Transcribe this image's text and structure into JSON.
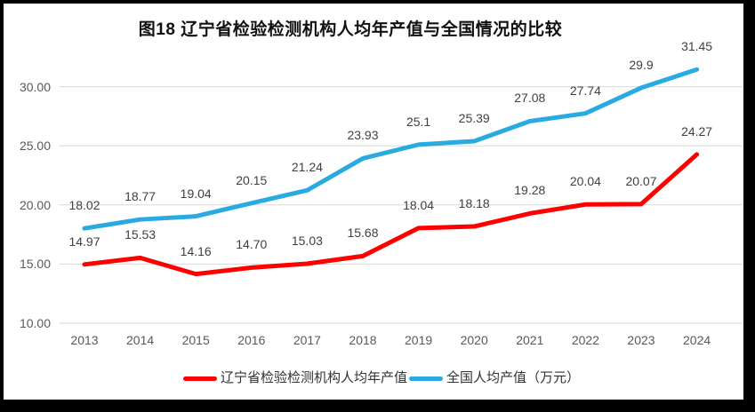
{
  "colors": {
    "frame_border": "#000000",
    "background": "#ffffff",
    "gridline": "#d9d9d9",
    "axis_text": "#595959",
    "data_label_text": "#404040",
    "series_red": "#ff0000",
    "series_blue": "#29abe2"
  },
  "chart_data": {
    "type": "line",
    "title": "图18 辽宁省检验检测机构人均年产值与全国情况的比较",
    "xlabel": "",
    "ylabel": "",
    "categories": [
      "2013",
      "2014",
      "2015",
      "2016",
      "2017",
      "2018",
      "2019",
      "2020",
      "2021",
      "2022",
      "2023",
      "2024"
    ],
    "series": [
      {
        "name": "辽宁省检验检测机构人均年产值",
        "color": "#ff0000",
        "values": [
          14.97,
          15.53,
          14.16,
          14.7,
          15.03,
          15.68,
          18.04,
          18.18,
          19.28,
          20.04,
          20.07,
          24.27
        ],
        "labels": [
          "14.97",
          "15.53",
          "14.16",
          "14.70",
          "15.03",
          "15.68",
          "18.04",
          "18.18",
          "19.28",
          "20.04",
          "20.07",
          "24.27"
        ]
      },
      {
        "name": "全国人均产值（万元）",
        "color": "#29abe2",
        "values": [
          18.02,
          18.77,
          19.04,
          20.15,
          21.24,
          23.93,
          25.1,
          25.39,
          27.08,
          27.74,
          29.9,
          31.45
        ],
        "labels": [
          "18.02",
          "18.77",
          "19.04",
          "20.15",
          "21.24",
          "23.93",
          "25.1",
          "25.39",
          "27.08",
          "27.74",
          "29.9",
          "31.45"
        ]
      }
    ],
    "y_ticks": [
      "10.00",
      "15.00",
      "20.00",
      "25.00",
      "30.00"
    ],
    "ylim": [
      10,
      32
    ],
    "y_tick_step": 5,
    "grid": true,
    "legend_position": "bottom",
    "data_labels": true
  }
}
